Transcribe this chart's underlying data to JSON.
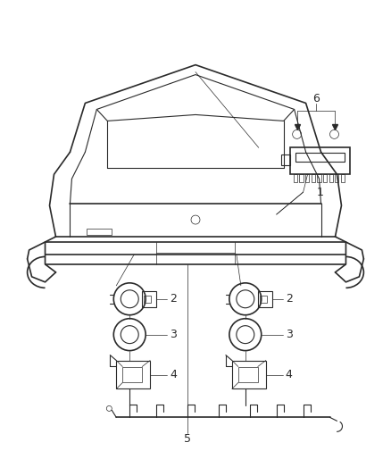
{
  "bg_color": "#ffffff",
  "line_color": "#2a2a2a",
  "label_color": "#2a2a2a",
  "fig_width": 4.38,
  "fig_height": 5.33,
  "dpi": 100
}
